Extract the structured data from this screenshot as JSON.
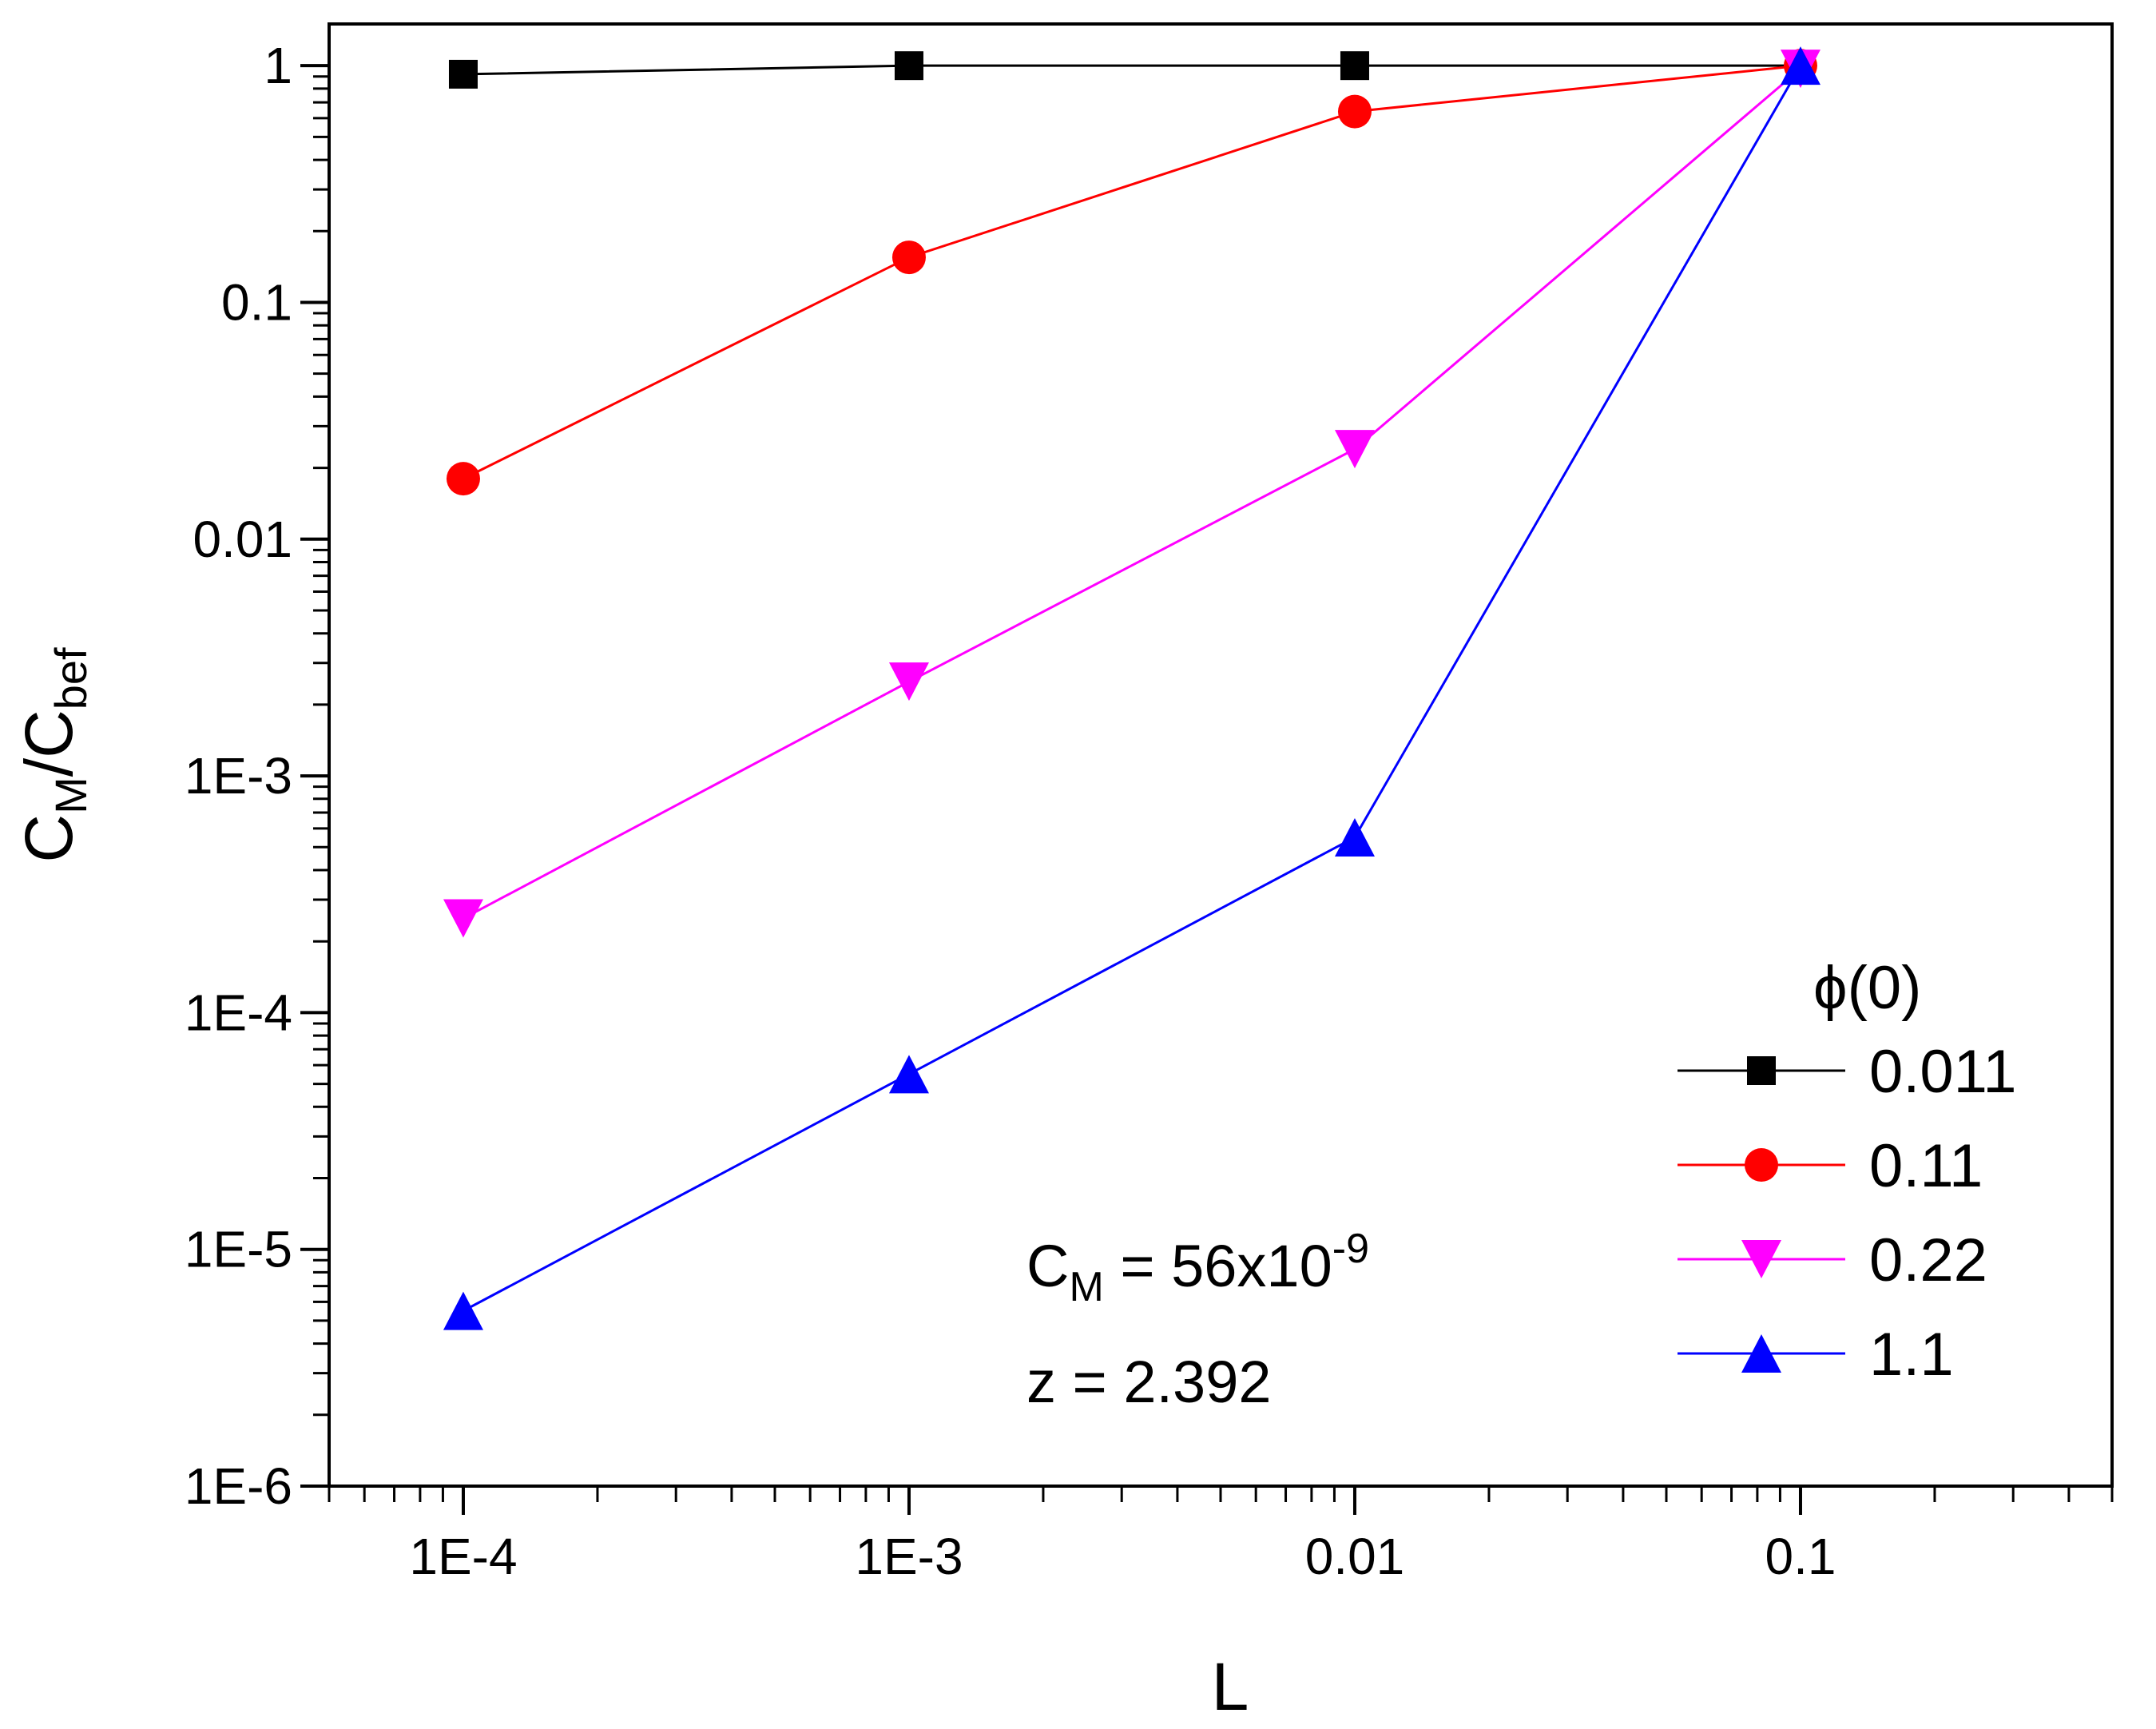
{
  "chart_data": {
    "type": "line",
    "xlabel": "L",
    "ylabel": {
      "main1": "C",
      "sub1": "M",
      "slash": "/",
      "main2": "C",
      "sub2": "bef"
    },
    "xscale": "log",
    "yscale": "log",
    "xlim": [
      5e-05,
      0.5
    ],
    "ylim": [
      1e-06,
      1.5
    ],
    "xticks": [
      {
        "value": 0.0001,
        "label": "1E-4"
      },
      {
        "value": 0.001,
        "label": "1E-3"
      },
      {
        "value": 0.01,
        "label": "0.01"
      },
      {
        "value": 0.1,
        "label": "0.1"
      }
    ],
    "yticks": [
      {
        "value": 1,
        "label": "1"
      },
      {
        "value": 0.1,
        "label": "0.1"
      },
      {
        "value": 0.01,
        "label": "0.01"
      },
      {
        "value": 0.001,
        "label": "1E-3"
      },
      {
        "value": 0.0001,
        "label": "1E-4"
      },
      {
        "value": 1e-05,
        "label": "1E-5"
      },
      {
        "value": 1e-06,
        "label": "1E-6"
      }
    ],
    "grid": false,
    "legend": {
      "title": "ϕ(0)",
      "placement": "bottom-right"
    },
    "series": [
      {
        "name": "0.011",
        "color": "#000000",
        "marker": "square",
        "x": [
          0.0001,
          0.001,
          0.01,
          0.1
        ],
        "y": [
          0.92,
          1.0,
          1.0,
          1.0
        ]
      },
      {
        "name": "0.11",
        "color": "#ff0000",
        "marker": "circle",
        "x": [
          0.0001,
          0.001,
          0.01,
          0.1
        ],
        "y": [
          0.018,
          0.155,
          0.64,
          1.0
        ]
      },
      {
        "name": "0.22",
        "color": "#ff00ff",
        "marker": "triangle-down",
        "x": [
          0.0001,
          0.001,
          0.01,
          0.1
        ],
        "y": [
          0.00025,
          0.0025,
          0.024,
          0.97
        ]
      },
      {
        "name": "1.1",
        "color": "#0000ff",
        "marker": "triangle-up",
        "x": [
          0.0001,
          0.001,
          0.01,
          0.1
        ],
        "y": [
          5.5e-06,
          5.5e-05,
          0.00055,
          1.0
        ]
      }
    ],
    "annotations": {
      "cm_main": "C",
      "cm_sub": "M",
      "cm_rest": " = 56x10",
      "cm_sup": "-9",
      "z_line": "z = 2.392"
    }
  }
}
